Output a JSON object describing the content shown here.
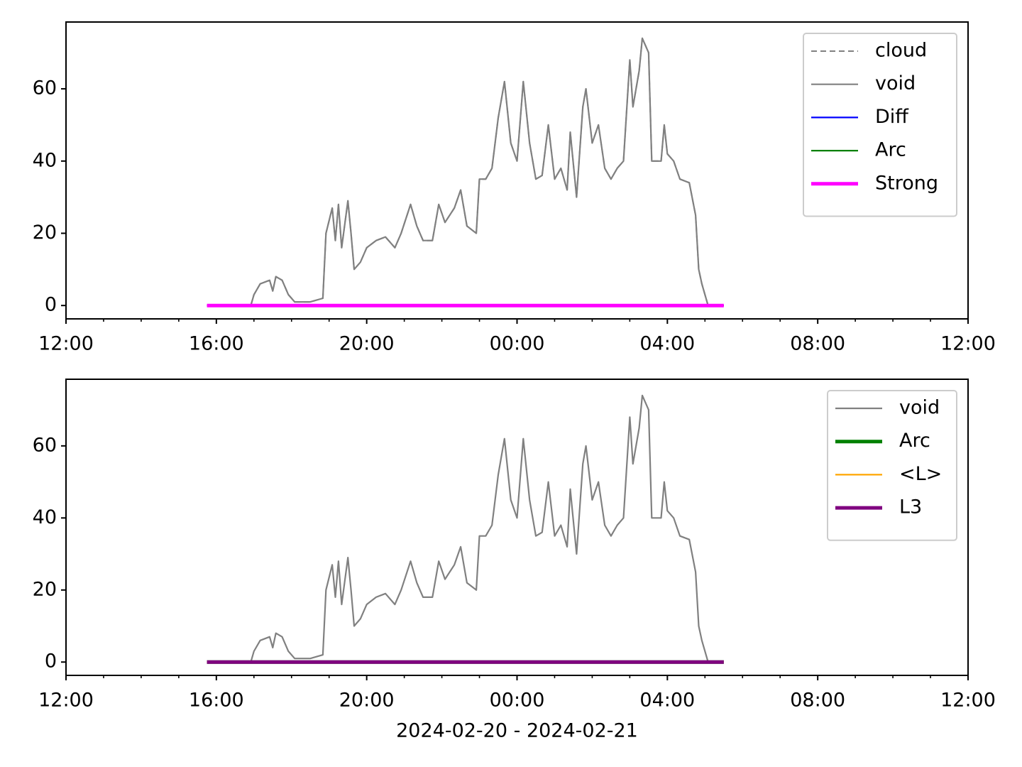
{
  "chart_data": [
    {
      "type": "line",
      "legend": "upper right",
      "xlim": [
        "2024-02-20 12:00",
        "2024-02-21 12:00"
      ],
      "xticks": [
        {
          "value": "2024-02-20 12:00",
          "label": "12:00"
        },
        {
          "value": "2024-02-20 16:00",
          "label": "16:00"
        },
        {
          "value": "2024-02-20 20:00",
          "label": "20:00"
        },
        {
          "value": "2024-02-21 00:00",
          "label": "00:00"
        },
        {
          "value": "2024-02-21 04:00",
          "label": "04:00"
        },
        {
          "value": "2024-02-21 08:00",
          "label": "08:00"
        },
        {
          "value": "2024-02-21 12:00",
          "label": "12:00"
        }
      ],
      "minor_xticks": [
        "2024-02-20 13:00",
        "2024-02-20 14:00",
        "2024-02-20 15:00",
        "2024-02-20 17:00",
        "2024-02-20 18:00",
        "2024-02-20 19:00",
        "2024-02-20 21:00",
        "2024-02-20 22:00",
        "2024-02-20 23:00",
        "2024-02-21 01:00",
        "2024-02-21 02:00",
        "2024-02-21 03:00",
        "2024-02-21 05:00",
        "2024-02-21 06:00",
        "2024-02-21 07:00",
        "2024-02-21 09:00",
        "2024-02-21 10:00",
        "2024-02-21 11:00"
      ],
      "ylim": [
        -3.7,
        78.5
      ],
      "yticks": [
        0,
        20,
        40,
        60
      ],
      "series": [
        {
          "name": "cloud",
          "color": "#808080",
          "linestyle": "dashed",
          "linewidth": 2,
          "x": [
            "2024-02-20 16:55",
            "2024-02-20 17:00",
            "2024-02-20 17:10",
            "2024-02-20 17:25",
            "2024-02-20 17:30",
            "2024-02-20 17:35",
            "2024-02-20 17:45",
            "2024-02-20 17:55",
            "2024-02-20 18:05",
            "2024-02-20 18:30",
            "2024-02-20 18:50",
            "2024-02-20 18:55",
            "2024-02-20 19:05",
            "2024-02-20 19:10",
            "2024-02-20 19:15",
            "2024-02-20 19:20",
            "2024-02-20 19:30",
            "2024-02-20 19:35",
            "2024-02-20 19:40",
            "2024-02-20 19:50",
            "2024-02-20 20:00",
            "2024-02-20 20:15",
            "2024-02-20 20:30",
            "2024-02-20 20:45",
            "2024-02-20 20:55",
            "2024-02-20 21:10",
            "2024-02-20 21:20",
            "2024-02-20 21:30",
            "2024-02-20 21:45",
            "2024-02-20 21:55",
            "2024-02-20 22:05",
            "2024-02-20 22:20",
            "2024-02-20 22:30",
            "2024-02-20 22:40",
            "2024-02-20 22:55",
            "2024-02-20 23:00",
            "2024-02-20 23:10",
            "2024-02-20 23:20",
            "2024-02-20 23:30",
            "2024-02-20 23:40",
            "2024-02-20 23:50",
            "2024-02-21 00:00",
            "2024-02-21 00:10",
            "2024-02-21 00:20",
            "2024-02-21 00:30",
            "2024-02-21 00:40",
            "2024-02-21 00:50",
            "2024-02-21 01:00",
            "2024-02-21 01:10",
            "2024-02-21 01:20",
            "2024-02-21 01:25",
            "2024-02-21 01:35",
            "2024-02-21 01:45",
            "2024-02-21 01:50",
            "2024-02-21 02:00",
            "2024-02-21 02:10",
            "2024-02-21 02:20",
            "2024-02-21 02:30",
            "2024-02-21 02:40",
            "2024-02-21 02:50",
            "2024-02-21 03:00",
            "2024-02-21 03:05",
            "2024-02-21 03:15",
            "2024-02-21 03:20",
            "2024-02-21 03:30",
            "2024-02-21 03:35",
            "2024-02-21 03:50",
            "2024-02-21 03:55",
            "2024-02-21 04:00",
            "2024-02-21 04:10",
            "2024-02-21 04:20",
            "2024-02-21 04:35",
            "2024-02-21 04:45",
            "2024-02-21 04:50",
            "2024-02-21 04:55",
            "2024-02-21 05:05"
          ],
          "values": [
            0,
            3,
            6,
            7,
            4,
            8,
            7,
            3,
            1,
            1,
            2,
            20,
            27,
            18,
            28,
            16,
            29,
            20,
            10,
            12,
            16,
            18,
            19,
            16,
            20,
            28,
            22,
            18,
            18,
            28,
            23,
            27,
            32,
            22,
            20,
            35,
            35,
            38,
            52,
            62,
            45,
            40,
            62,
            45,
            35,
            36,
            50,
            35,
            38,
            32,
            48,
            30,
            55,
            60,
            45,
            50,
            38,
            35,
            38,
            40,
            68,
            55,
            65,
            74,
            70,
            40,
            40,
            50,
            42,
            40,
            35,
            34,
            25,
            10,
            6,
            0
          ]
        },
        {
          "name": "void",
          "color": "#808080",
          "linestyle": "solid",
          "linewidth": 2.2,
          "x": [
            "2024-02-20 16:55",
            "2024-02-20 17:00",
            "2024-02-20 17:10",
            "2024-02-20 17:25",
            "2024-02-20 17:30",
            "2024-02-20 17:35",
            "2024-02-20 17:45",
            "2024-02-20 17:55",
            "2024-02-20 18:05",
            "2024-02-20 18:30",
            "2024-02-20 18:50",
            "2024-02-20 18:55",
            "2024-02-20 19:05",
            "2024-02-20 19:10",
            "2024-02-20 19:15",
            "2024-02-20 19:20",
            "2024-02-20 19:30",
            "2024-02-20 19:35",
            "2024-02-20 19:40",
            "2024-02-20 19:50",
            "2024-02-20 20:00",
            "2024-02-20 20:15",
            "2024-02-20 20:30",
            "2024-02-20 20:45",
            "2024-02-20 20:55",
            "2024-02-20 21:10",
            "2024-02-20 21:20",
            "2024-02-20 21:30",
            "2024-02-20 21:45",
            "2024-02-20 21:55",
            "2024-02-20 22:05",
            "2024-02-20 22:20",
            "2024-02-20 22:30",
            "2024-02-20 22:40",
            "2024-02-20 22:55",
            "2024-02-20 23:00",
            "2024-02-20 23:10",
            "2024-02-20 23:20",
            "2024-02-20 23:30",
            "2024-02-20 23:40",
            "2024-02-20 23:50",
            "2024-02-21 00:00",
            "2024-02-21 00:10",
            "2024-02-21 00:20",
            "2024-02-21 00:30",
            "2024-02-21 00:40",
            "2024-02-21 00:50",
            "2024-02-21 01:00",
            "2024-02-21 01:10",
            "2024-02-21 01:20",
            "2024-02-21 01:25",
            "2024-02-21 01:35",
            "2024-02-21 01:45",
            "2024-02-21 01:50",
            "2024-02-21 02:00",
            "2024-02-21 02:10",
            "2024-02-21 02:20",
            "2024-02-21 02:30",
            "2024-02-21 02:40",
            "2024-02-21 02:50",
            "2024-02-21 03:00",
            "2024-02-21 03:05",
            "2024-02-21 03:15",
            "2024-02-21 03:20",
            "2024-02-21 03:30",
            "2024-02-21 03:35",
            "2024-02-21 03:50",
            "2024-02-21 03:55",
            "2024-02-21 04:00",
            "2024-02-21 04:10",
            "2024-02-21 04:20",
            "2024-02-21 04:35",
            "2024-02-21 04:45",
            "2024-02-21 04:50",
            "2024-02-21 04:55",
            "2024-02-21 05:05"
          ],
          "values": [
            0,
            3,
            6,
            7,
            4,
            8,
            7,
            3,
            1,
            1,
            2,
            20,
            27,
            18,
            28,
            16,
            29,
            20,
            10,
            12,
            16,
            18,
            19,
            16,
            20,
            28,
            22,
            18,
            18,
            28,
            23,
            27,
            32,
            22,
            20,
            35,
            35,
            38,
            52,
            62,
            45,
            40,
            62,
            45,
            35,
            36,
            50,
            35,
            38,
            32,
            48,
            30,
            55,
            60,
            45,
            50,
            38,
            35,
            38,
            40,
            68,
            55,
            65,
            74,
            70,
            40,
            40,
            50,
            42,
            40,
            35,
            34,
            25,
            10,
            6,
            0
          ]
        },
        {
          "name": "Diff",
          "color": "#0000ff",
          "linestyle": "solid",
          "linewidth": 2.2,
          "x": [
            "2024-02-20 15:45",
            "2024-02-21 05:30"
          ],
          "values": [
            0,
            0
          ]
        },
        {
          "name": "Arc",
          "color": "#008000",
          "linestyle": "solid",
          "linewidth": 2.2,
          "x": [
            "2024-02-20 15:45",
            "2024-02-21 05:30"
          ],
          "values": [
            0,
            0
          ]
        },
        {
          "name": "Strong",
          "color": "#ff00ff",
          "linestyle": "solid",
          "linewidth": 5,
          "x": [
            "2024-02-20 15:45",
            "2024-02-21 05:30"
          ],
          "values": [
            0,
            0
          ]
        }
      ]
    },
    {
      "type": "line",
      "legend": "upper right",
      "xlabel": "2024-02-20 - 2024-02-21",
      "xlim": [
        "2024-02-20 12:00",
        "2024-02-21 12:00"
      ],
      "xticks": [
        {
          "value": "2024-02-20 12:00",
          "label": "12:00"
        },
        {
          "value": "2024-02-20 16:00",
          "label": "16:00"
        },
        {
          "value": "2024-02-20 20:00",
          "label": "20:00"
        },
        {
          "value": "2024-02-21 00:00",
          "label": "00:00"
        },
        {
          "value": "2024-02-21 04:00",
          "label": "04:00"
        },
        {
          "value": "2024-02-21 08:00",
          "label": "08:00"
        },
        {
          "value": "2024-02-21 12:00",
          "label": "12:00"
        }
      ],
      "minor_xticks": [
        "2024-02-20 13:00",
        "2024-02-20 14:00",
        "2024-02-20 15:00",
        "2024-02-20 17:00",
        "2024-02-20 18:00",
        "2024-02-20 19:00",
        "2024-02-20 21:00",
        "2024-02-20 22:00",
        "2024-02-20 23:00",
        "2024-02-21 01:00",
        "2024-02-21 02:00",
        "2024-02-21 03:00",
        "2024-02-21 05:00",
        "2024-02-21 06:00",
        "2024-02-21 07:00",
        "2024-02-21 09:00",
        "2024-02-21 10:00",
        "2024-02-21 11:00"
      ],
      "ylim": [
        -3.7,
        78.5
      ],
      "yticks": [
        0,
        20,
        40,
        60
      ],
      "series": [
        {
          "name": "void",
          "color": "#808080",
          "linestyle": "solid",
          "linewidth": 2.2,
          "x": [
            "2024-02-20 16:55",
            "2024-02-20 17:00",
            "2024-02-20 17:10",
            "2024-02-20 17:25",
            "2024-02-20 17:30",
            "2024-02-20 17:35",
            "2024-02-20 17:45",
            "2024-02-20 17:55",
            "2024-02-20 18:05",
            "2024-02-20 18:30",
            "2024-02-20 18:50",
            "2024-02-20 18:55",
            "2024-02-20 19:05",
            "2024-02-20 19:10",
            "2024-02-20 19:15",
            "2024-02-20 19:20",
            "2024-02-20 19:30",
            "2024-02-20 19:35",
            "2024-02-20 19:40",
            "2024-02-20 19:50",
            "2024-02-20 20:00",
            "2024-02-20 20:15",
            "2024-02-20 20:30",
            "2024-02-20 20:45",
            "2024-02-20 20:55",
            "2024-02-20 21:10",
            "2024-02-20 21:20",
            "2024-02-20 21:30",
            "2024-02-20 21:45",
            "2024-02-20 21:55",
            "2024-02-20 22:05",
            "2024-02-20 22:20",
            "2024-02-20 22:30",
            "2024-02-20 22:40",
            "2024-02-20 22:55",
            "2024-02-20 23:00",
            "2024-02-20 23:10",
            "2024-02-20 23:20",
            "2024-02-20 23:30",
            "2024-02-20 23:40",
            "2024-02-20 23:50",
            "2024-02-21 00:00",
            "2024-02-21 00:10",
            "2024-02-21 00:20",
            "2024-02-21 00:30",
            "2024-02-21 00:40",
            "2024-02-21 00:50",
            "2024-02-21 01:00",
            "2024-02-21 01:10",
            "2024-02-21 01:20",
            "2024-02-21 01:25",
            "2024-02-21 01:35",
            "2024-02-21 01:45",
            "2024-02-21 01:50",
            "2024-02-21 02:00",
            "2024-02-21 02:10",
            "2024-02-21 02:20",
            "2024-02-21 02:30",
            "2024-02-21 02:40",
            "2024-02-21 02:50",
            "2024-02-21 03:00",
            "2024-02-21 03:05",
            "2024-02-21 03:15",
            "2024-02-21 03:20",
            "2024-02-21 03:30",
            "2024-02-21 03:35",
            "2024-02-21 03:50",
            "2024-02-21 03:55",
            "2024-02-21 04:00",
            "2024-02-21 04:10",
            "2024-02-21 04:20",
            "2024-02-21 04:35",
            "2024-02-21 04:45",
            "2024-02-21 04:50",
            "2024-02-21 04:55",
            "2024-02-21 05:05"
          ],
          "values": [
            0,
            3,
            6,
            7,
            4,
            8,
            7,
            3,
            1,
            1,
            2,
            20,
            27,
            18,
            28,
            16,
            29,
            20,
            10,
            12,
            16,
            18,
            19,
            16,
            20,
            28,
            22,
            18,
            18,
            28,
            23,
            27,
            32,
            22,
            20,
            35,
            35,
            38,
            52,
            62,
            45,
            40,
            62,
            45,
            35,
            36,
            50,
            35,
            38,
            32,
            48,
            30,
            55,
            60,
            45,
            50,
            38,
            35,
            38,
            40,
            68,
            55,
            65,
            74,
            70,
            40,
            40,
            50,
            42,
            40,
            35,
            34,
            25,
            10,
            6,
            0
          ]
        },
        {
          "name": "Arc",
          "color": "#008000",
          "linestyle": "solid",
          "linewidth": 5,
          "x": [
            "2024-02-20 15:45",
            "2024-02-21 05:30"
          ],
          "values": [
            0,
            0
          ]
        },
        {
          "name": "<L>",
          "color": "#ffa500",
          "linestyle": "solid",
          "linewidth": 2.2,
          "x": [
            "2024-02-20 15:45",
            "2024-02-21 05:30"
          ],
          "values": [
            0,
            0
          ]
        },
        {
          "name": "L3",
          "color": "#800080",
          "linestyle": "solid",
          "linewidth": 5,
          "x": [
            "2024-02-20 15:45",
            "2024-02-21 05:30"
          ],
          "values": [
            0,
            0
          ]
        }
      ]
    }
  ]
}
